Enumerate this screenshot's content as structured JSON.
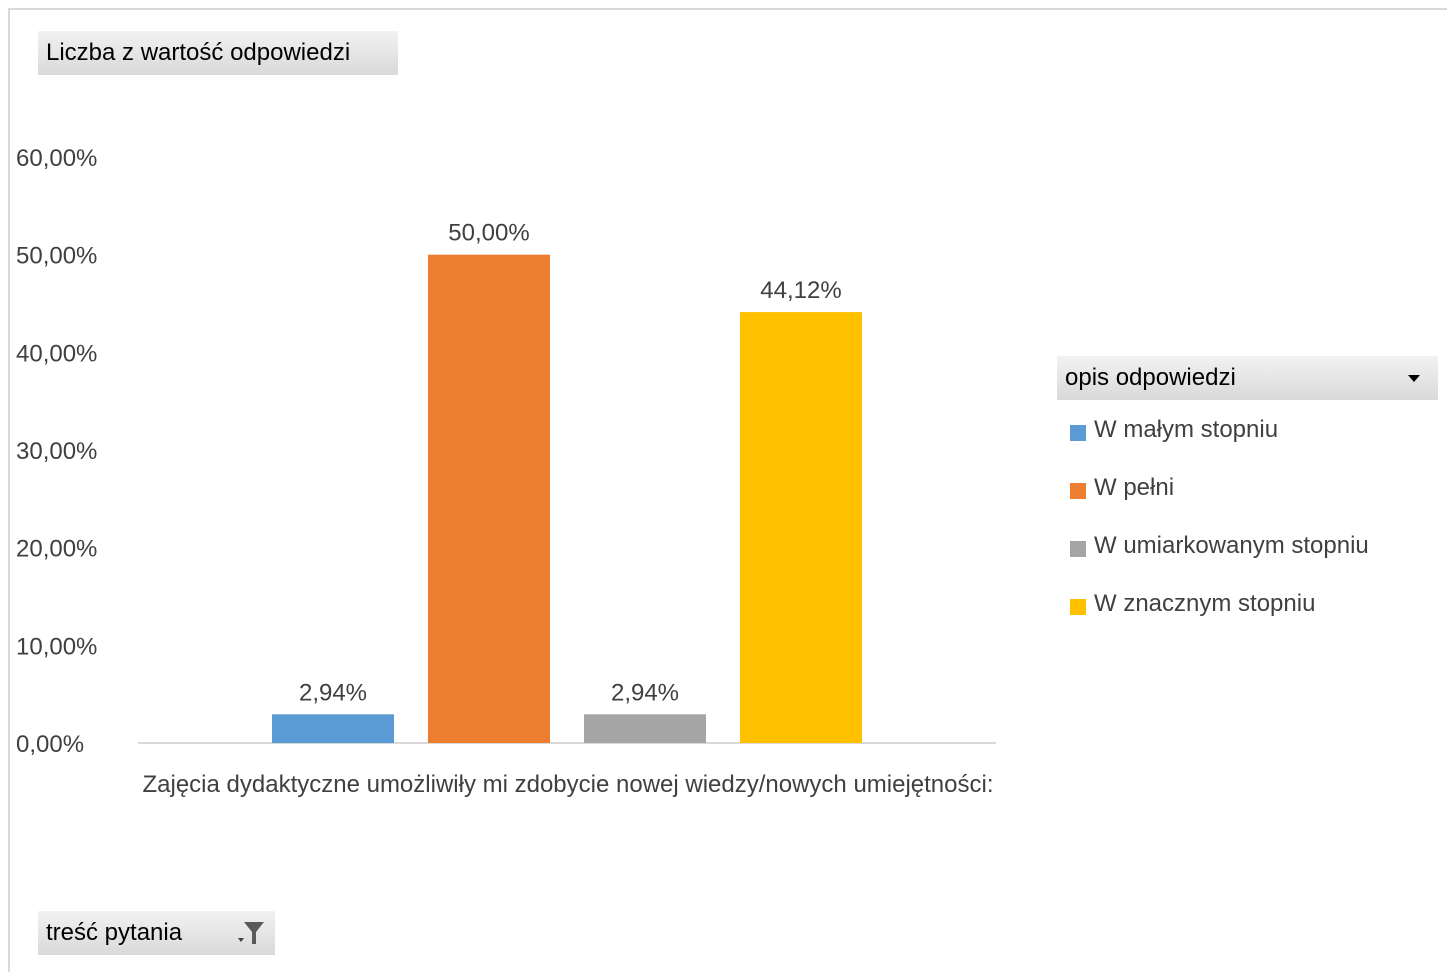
{
  "values_field_label": "Liczba z wartość odpowiedzi",
  "filter_field_label": "treść pytania",
  "legend_field_label": "opis odpowiedzi",
  "chart_data": {
    "type": "bar",
    "categories": [
      "Zajęcia dydaktyczne umożliwiły mi zdobycie nowej wiedzy/nowych umiejętności:"
    ],
    "series": [
      {
        "name": "W małym stopniu",
        "values": [
          2.94
        ],
        "color": "#5b9bd5",
        "label": "2,94%"
      },
      {
        "name": "W pełni",
        "values": [
          50.0
        ],
        "color": "#ed7d31",
        "label": "50,00%"
      },
      {
        "name": "W umiarkowanym stopniu",
        "values": [
          2.94
        ],
        "color": "#a5a5a5",
        "label": "2,94%"
      },
      {
        "name": "W znacznym stopniu",
        "values": [
          44.12
        ],
        "color": "#ffc000",
        "label": "44,12%"
      }
    ],
    "ylim": [
      0,
      60
    ],
    "yticks": [
      "0,00%",
      "10,00%",
      "20,00%",
      "30,00%",
      "40,00%",
      "50,00%",
      "60,00%"
    ],
    "legend_position": "right",
    "grid": false
  }
}
